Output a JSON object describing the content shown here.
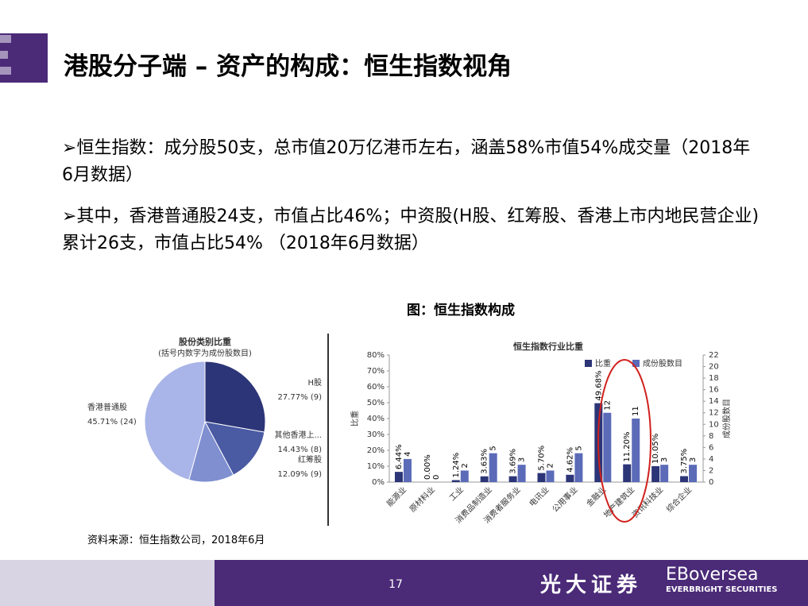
{
  "slide": {
    "title": "港股分子端 – 资产的构成：恒生指数视角",
    "bullets": [
      "恒生指数：成分股50支，总市值20万亿港币左右，涵盖58%市值54%成交量（2018年6月数据）",
      "其中，香港普通股24支，市值占比46%；中资股(H股、红筹股、香港上市内地民营企业)累计26支，市值占比54% （2018年6月数据）"
    ],
    "figure_caption": "图：恒生指数构成",
    "source": "资料来源：恒生指数公司，2018年6月",
    "page": "17",
    "logo": "光大证券",
    "brand": "EBoversea",
    "brand_sub": "EVERBRIGHT SECURITIES"
  },
  "chart_data": [
    {
      "type": "pie",
      "title": "股份类别比重",
      "subtitle": "(括号内数字为成份股数目)",
      "categories": [
        "H股",
        "其他香港上...",
        "红筹股",
        "香港普通股"
      ],
      "values": [
        27.77,
        14.43,
        12.09,
        45.71
      ],
      "value_labels": [
        "27.77% (9)",
        "14.43% (8)",
        "12.09% (9)",
        "45.71% (24)"
      ],
      "colors": [
        "#2c3577",
        "#4a5aa3",
        "#7f8fd0",
        "#a9b5e8"
      ]
    },
    {
      "type": "bar",
      "title": "恒生指数行业比重",
      "ylabel": "比重",
      "y2label": "成份股数目",
      "categories": [
        "能源业",
        "原材料业",
        "工业",
        "消费品制造业",
        "消费者服务业",
        "电讯业",
        "公用事业",
        "金融业",
        "地产建筑业",
        "资讯科技业",
        "综合企业"
      ],
      "series": [
        {
          "name": "比重",
          "color": "#2c3577",
          "values": [
            6.44,
            0.0,
            1.24,
            3.63,
            3.69,
            5.7,
            4.62,
            49.68,
            11.2,
            10.05,
            3.75
          ],
          "value_labels": [
            "6.44%",
            "0.00%",
            "1.24%",
            "3.63%",
            "3.69%",
            "5.70%",
            "4.62%",
            "49.68%",
            "11.20%",
            "10.05%",
            "3.75%"
          ]
        },
        {
          "name": "成份股数目",
          "color": "#5b6bb8",
          "axis": "y2",
          "values": [
            4,
            0,
            2,
            5,
            3,
            2,
            5,
            12,
            11,
            3,
            3
          ]
        }
      ],
      "ylim": [
        0,
        80
      ],
      "yticks": [
        {
          "value": 0,
          "label": "0%"
        },
        {
          "value": 10,
          "label": "10%"
        },
        {
          "value": 20,
          "label": "20%"
        },
        {
          "value": 30,
          "label": "30%"
        },
        {
          "value": 40,
          "label": "40%"
        },
        {
          "value": 50,
          "label": "50%"
        },
        {
          "value": 60,
          "label": "60%"
        },
        {
          "value": 70,
          "label": "70%"
        },
        {
          "value": 80,
          "label": "80%"
        }
      ],
      "y2lim": [
        0,
        22
      ],
      "y2ticks": [
        0,
        2,
        4,
        6,
        8,
        10,
        12,
        14,
        16,
        18,
        20,
        22
      ]
    }
  ]
}
